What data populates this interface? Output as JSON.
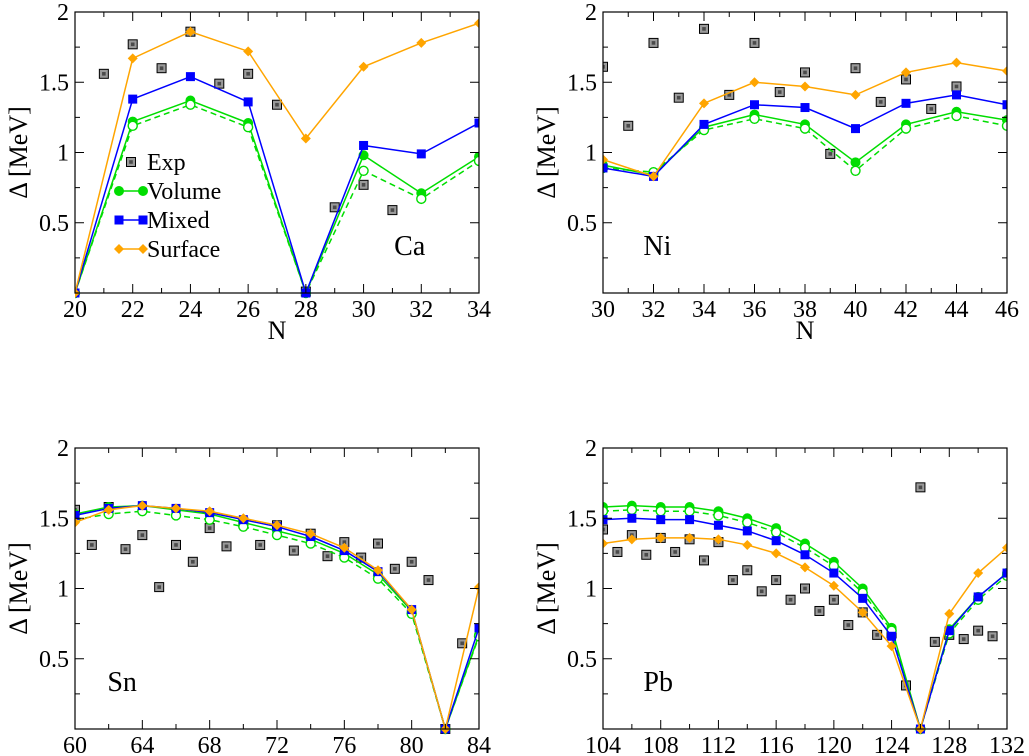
{
  "chart_data": [
    {
      "type": "line",
      "panel_label": "Ca",
      "xlabel": "N",
      "ylabel": "Δ [MeV]",
      "xlim": [
        20,
        34
      ],
      "ylim": [
        0,
        2
      ],
      "xticks": [
        20,
        22,
        24,
        26,
        28,
        30,
        32,
        34
      ],
      "yticks": [
        0.5,
        1,
        1.5,
        2
      ],
      "legend": {
        "position": "middle-left",
        "entries": [
          "Exp",
          "Volume",
          "Mixed",
          "Surface"
        ]
      },
      "series": [
        {
          "name": "Exp",
          "x": [
            21,
            22,
            23,
            24,
            25,
            26,
            27,
            28,
            29,
            30,
            31
          ],
          "y": [
            1.56,
            1.77,
            1.6,
            1.86,
            1.49,
            1.56,
            1.34,
            0.01,
            0.61,
            0.77,
            0.59
          ]
        },
        {
          "name": "Volume",
          "x": [
            20,
            22,
            24,
            26,
            28,
            30,
            32,
            34
          ],
          "y": [
            0,
            1.22,
            1.37,
            1.21,
            0,
            0.98,
            0.71,
            0.97
          ]
        },
        {
          "name": "Volume (open)",
          "x": [
            20,
            22,
            24,
            26,
            28,
            30,
            32,
            34
          ],
          "y": [
            0,
            1.19,
            1.34,
            1.18,
            0,
            0.87,
            0.67,
            0.94
          ]
        },
        {
          "name": "Mixed",
          "x": [
            20,
            22,
            24,
            26,
            28,
            30,
            32,
            34
          ],
          "y": [
            0,
            1.38,
            1.54,
            1.36,
            0,
            1.05,
            0.99,
            1.21
          ]
        },
        {
          "name": "Surface",
          "x": [
            20,
            22,
            24,
            26,
            28,
            30,
            32,
            34
          ],
          "y": [
            0,
            1.67,
            1.86,
            1.72,
            1.1,
            1.61,
            1.78,
            1.92
          ]
        }
      ]
    },
    {
      "type": "line",
      "panel_label": "Ni",
      "xlabel": "N",
      "ylabel": "Δ [MeV]",
      "xlim": [
        30,
        46
      ],
      "ylim": [
        0,
        2
      ],
      "xticks": [
        30,
        32,
        34,
        36,
        38,
        40,
        42,
        44,
        46
      ],
      "yticks": [
        0.5,
        1,
        1.5,
        2
      ],
      "series": [
        {
          "name": "Exp",
          "x": [
            30,
            31,
            32,
            33,
            34,
            35,
            36,
            37,
            38,
            39,
            40,
            41,
            42,
            43,
            44
          ],
          "y": [
            1.61,
            1.19,
            1.78,
            1.39,
            1.88,
            1.41,
            1.78,
            1.43,
            1.57,
            0.99,
            1.6,
            1.36,
            1.52,
            1.31,
            1.47
          ]
        },
        {
          "name": "Volume",
          "x": [
            30,
            32,
            34,
            36,
            38,
            40,
            42,
            44,
            46
          ],
          "y": [
            0.91,
            0.84,
            1.18,
            1.27,
            1.2,
            0.93,
            1.2,
            1.29,
            1.23
          ]
        },
        {
          "name": "Volume (open)",
          "x": [
            30,
            32,
            34,
            36,
            38,
            40,
            42,
            44,
            46
          ],
          "y": [
            0.89,
            0.86,
            1.16,
            1.24,
            1.17,
            0.87,
            1.17,
            1.26,
            1.19
          ]
        },
        {
          "name": "Mixed",
          "x": [
            30,
            32,
            34,
            36,
            38,
            40,
            42,
            44,
            46
          ],
          "y": [
            0.89,
            0.83,
            1.2,
            1.34,
            1.32,
            1.17,
            1.35,
            1.41,
            1.34
          ]
        },
        {
          "name": "Surface",
          "x": [
            30,
            32,
            34,
            36,
            38,
            40,
            42,
            44,
            46
          ],
          "y": [
            0.95,
            0.83,
            1.35,
            1.5,
            1.47,
            1.41,
            1.57,
            1.64,
            1.58
          ]
        }
      ]
    },
    {
      "type": "line",
      "panel_label": "Sn",
      "xlabel": "N",
      "ylabel": "Δ [MeV]",
      "xlim": [
        60,
        84
      ],
      "ylim": [
        0,
        2
      ],
      "xticks": [
        60,
        64,
        68,
        72,
        76,
        80,
        84
      ],
      "yticks": [
        0.5,
        1,
        1.5,
        2
      ],
      "series": [
        {
          "name": "Exp",
          "x": [
            60,
            61,
            62,
            63,
            64,
            65,
            66,
            67,
            68,
            69,
            70,
            71,
            72,
            73,
            74,
            75,
            76,
            77,
            78,
            79,
            80,
            81,
            82,
            83
          ],
          "y": [
            1.56,
            1.31,
            1.58,
            1.28,
            1.38,
            1.01,
            1.31,
            1.19,
            1.43,
            1.3,
            1.47,
            1.31,
            1.45,
            1.27,
            1.39,
            1.23,
            1.33,
            1.22,
            1.32,
            1.14,
            1.19,
            1.06,
            0,
            0.61
          ]
        },
        {
          "name": "Volume",
          "x": [
            60,
            62,
            64,
            66,
            68,
            70,
            72,
            74,
            76,
            78,
            80,
            82,
            84
          ],
          "y": [
            1.53,
            1.58,
            1.59,
            1.56,
            1.53,
            1.47,
            1.41,
            1.35,
            1.25,
            1.1,
            0.84,
            0,
            0.67
          ]
        },
        {
          "name": "Volume (open)",
          "x": [
            60,
            62,
            64,
            66,
            68,
            70,
            72,
            74,
            76,
            78,
            80,
            82,
            84
          ],
          "y": [
            1.49,
            1.53,
            1.55,
            1.52,
            1.49,
            1.44,
            1.38,
            1.32,
            1.22,
            1.07,
            0.82,
            0,
            0.66
          ]
        },
        {
          "name": "Mixed",
          "x": [
            60,
            62,
            64,
            66,
            68,
            70,
            72,
            74,
            76,
            78,
            80,
            82,
            84
          ],
          "y": [
            1.52,
            1.57,
            1.59,
            1.57,
            1.54,
            1.49,
            1.44,
            1.37,
            1.27,
            1.12,
            0.85,
            0,
            0.72
          ]
        },
        {
          "name": "Surface",
          "x": [
            60,
            62,
            64,
            66,
            68,
            70,
            72,
            74,
            76,
            78,
            80,
            82,
            84
          ],
          "y": [
            1.47,
            1.56,
            1.59,
            1.57,
            1.55,
            1.5,
            1.45,
            1.39,
            1.29,
            1.13,
            0.85,
            0,
            1.01
          ]
        }
      ]
    },
    {
      "type": "line",
      "panel_label": "Pb",
      "xlabel": "N",
      "ylabel": "Δ [MeV]",
      "xlim": [
        104,
        132
      ],
      "ylim": [
        0,
        2
      ],
      "xticks": [
        104,
        108,
        112,
        116,
        120,
        124,
        128,
        132
      ],
      "yticks": [
        0.5,
        1,
        1.5,
        2
      ],
      "series": [
        {
          "name": "Exp",
          "x": [
            104,
            105,
            106,
            107,
            108,
            109,
            110,
            111,
            112,
            113,
            114,
            115,
            116,
            117,
            118,
            119,
            120,
            121,
            122,
            123,
            124,
            125,
            126,
            127,
            128,
            129,
            130,
            131
          ],
          "y": [
            1.42,
            1.26,
            1.38,
            1.24,
            1.36,
            1.26,
            1.35,
            1.2,
            1.33,
            1.06,
            1.13,
            0.98,
            1.06,
            0.92,
            1.0,
            0.84,
            0.92,
            0.74,
            0.83,
            0.67,
            0.68,
            0.31,
            1.72,
            0.62,
            0.67,
            0.64,
            0.7,
            0.66
          ]
        },
        {
          "name": "Volume",
          "x": [
            104,
            106,
            108,
            110,
            112,
            114,
            116,
            118,
            120,
            122,
            124,
            126,
            128,
            130,
            132
          ],
          "y": [
            1.58,
            1.59,
            1.58,
            1.58,
            1.55,
            1.5,
            1.43,
            1.32,
            1.19,
            1.0,
            0.72,
            0,
            0.71,
            0.94,
            1.11
          ]
        },
        {
          "name": "Volume (open)",
          "x": [
            104,
            106,
            108,
            110,
            112,
            114,
            116,
            118,
            120,
            122,
            124,
            126,
            128,
            130,
            132
          ],
          "y": [
            1.55,
            1.56,
            1.55,
            1.55,
            1.52,
            1.47,
            1.4,
            1.29,
            1.16,
            0.97,
            0.7,
            0,
            0.68,
            0.92,
            1.09
          ]
        },
        {
          "name": "Mixed",
          "x": [
            104,
            106,
            108,
            110,
            112,
            114,
            116,
            118,
            120,
            122,
            124,
            126,
            128,
            130,
            132
          ],
          "y": [
            1.49,
            1.5,
            1.49,
            1.49,
            1.45,
            1.41,
            1.34,
            1.24,
            1.11,
            0.93,
            0.66,
            0,
            0.7,
            0.94,
            1.11
          ]
        },
        {
          "name": "Surface",
          "x": [
            104,
            106,
            108,
            110,
            112,
            114,
            116,
            118,
            120,
            122,
            124,
            126,
            128,
            130,
            132
          ],
          "y": [
            1.32,
            1.35,
            1.36,
            1.36,
            1.35,
            1.31,
            1.25,
            1.15,
            1.02,
            0.83,
            0.59,
            0,
            0.82,
            1.11,
            1.29
          ]
        }
      ]
    }
  ],
  "colors": {
    "Volume": "#00dd00",
    "Mixed": "#0000ff",
    "Surface": "#ffa500",
    "Exp_fill": "#9a9a9a",
    "axis": "#000000"
  }
}
